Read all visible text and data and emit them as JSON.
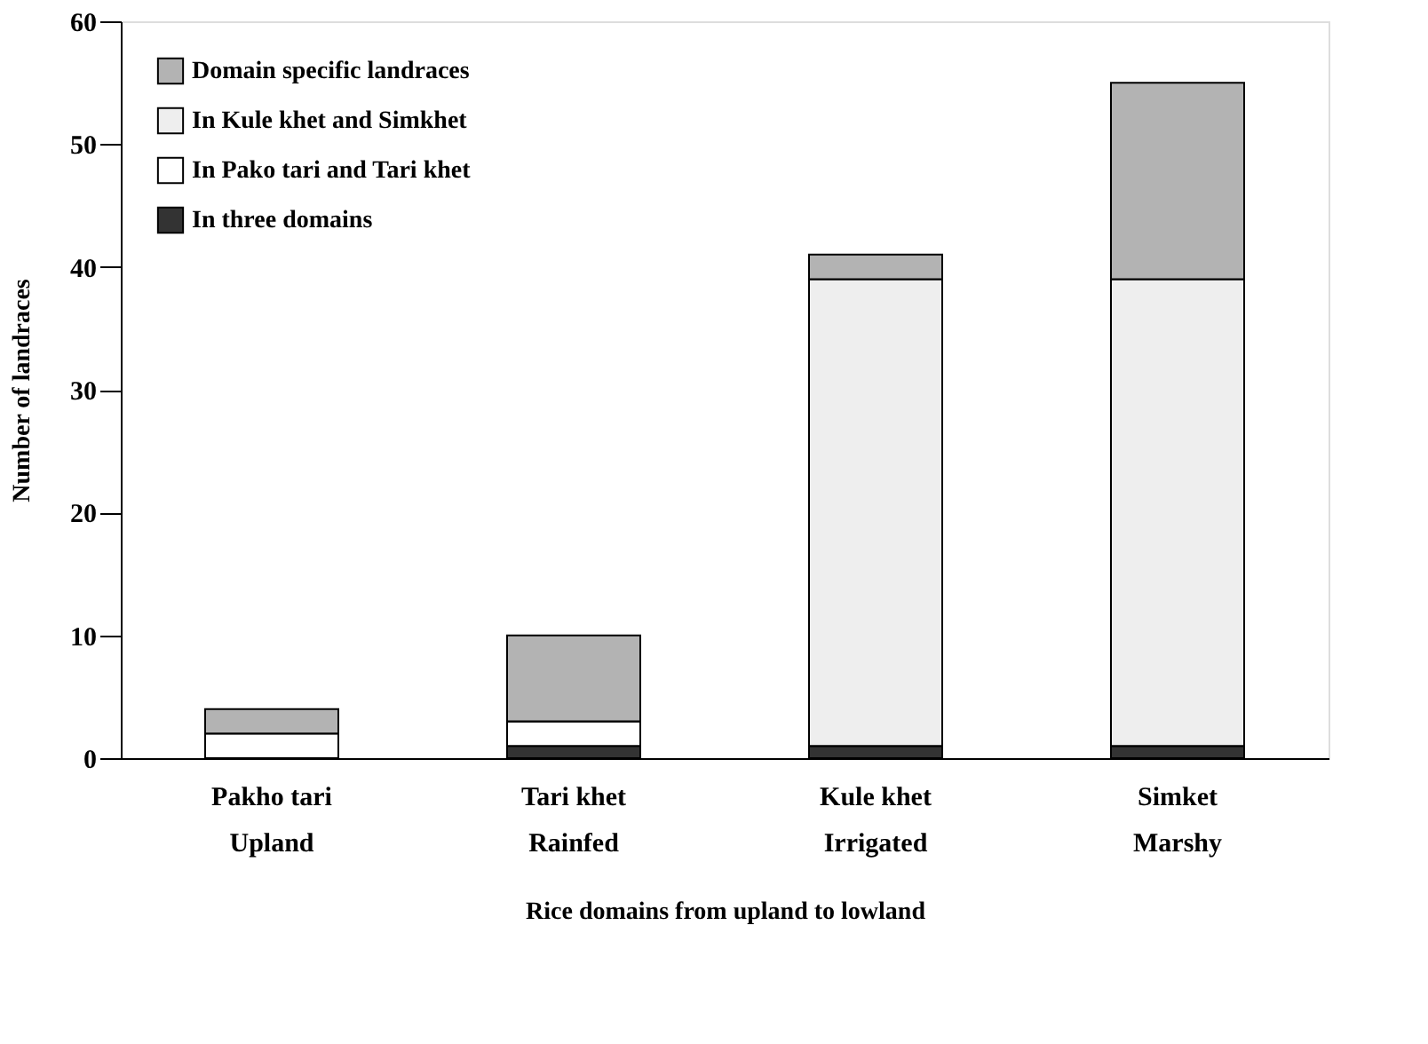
{
  "chart_data": {
    "type": "bar",
    "stacked": true,
    "xlabel": "Rice domains from upland to lowland",
    "ylabel": "Number of landraces",
    "categories": [
      "Pakho tari\nUpland",
      "Tari khet\nRainfed",
      "Kule khet\nIrrigated",
      "Simket\nMarshy"
    ],
    "series": [
      {
        "name": "In three domains",
        "color": "#333333",
        "values": [
          0,
          1,
          1,
          1
        ]
      },
      {
        "name": "In Pako tari and Tari khet",
        "color": "#ffffff",
        "values": [
          2,
          2,
          0,
          0
        ]
      },
      {
        "name": "In Kule khet and Simkhet",
        "color": "#eeeeee",
        "values": [
          0,
          0,
          38,
          38
        ]
      },
      {
        "name": "Domain specific landraces",
        "color": "#b3b3b3",
        "values": [
          2,
          7,
          2,
          16
        ]
      }
    ],
    "ylim": [
      0,
      60
    ],
    "yticks": [
      0,
      10,
      20,
      30,
      40,
      50,
      60
    ],
    "grid": false,
    "legend": "top left"
  }
}
